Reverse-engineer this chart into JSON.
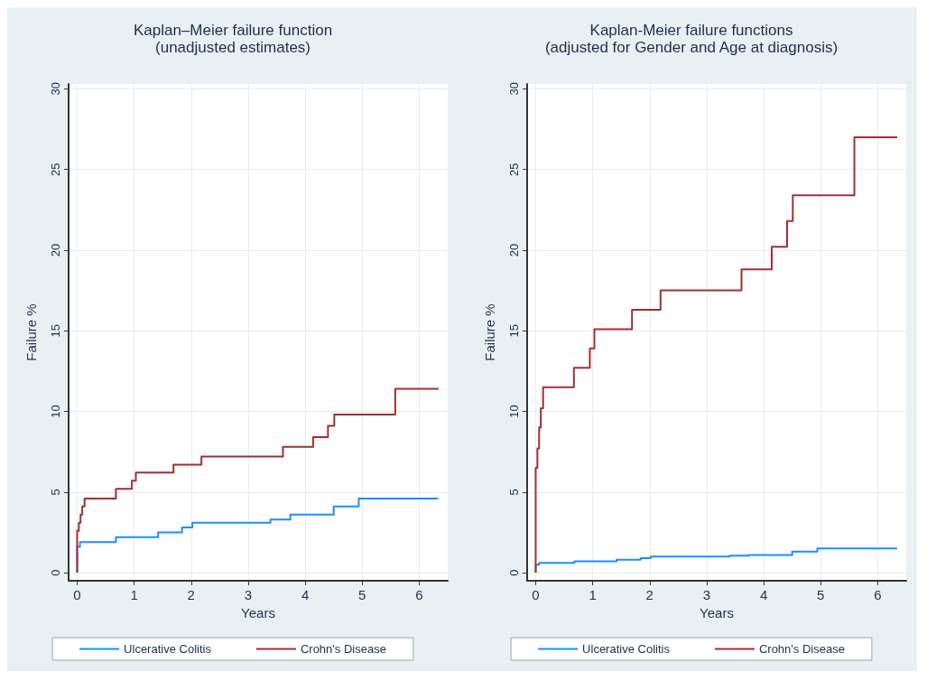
{
  "chart_data": [
    {
      "type": "step",
      "title": "Kaplan–Meier failure function",
      "subtitle": "(unadjusted estimates)",
      "xlabel": "Years",
      "ylabel": "Failure %",
      "xlim": [
        -0.15,
        6.5
      ],
      "xticks": [
        0,
        1,
        2,
        3,
        4,
        5,
        6
      ],
      "ylim": [
        -0.5,
        30.3
      ],
      "yticks": [
        0,
        5,
        10,
        15,
        20,
        25,
        30
      ],
      "grid": true,
      "legend": "bottom",
      "series": [
        {
          "name": "Ulcerative Colitis",
          "color": "#1e8cff",
          "x": [
            0,
            0,
            0.05,
            0.68,
            1.42,
            1.84,
            2.02,
            3.39,
            3.74,
            4.5,
            4.94,
            6.33
          ],
          "values": [
            0,
            1.6,
            1.9,
            2.2,
            2.5,
            2.8,
            3.1,
            3.3,
            3.6,
            4.1,
            4.6,
            4.6
          ]
        },
        {
          "name": "Crohn's Disease",
          "color": "#a0302f",
          "x": [
            0,
            0,
            0.03,
            0.06,
            0.09,
            0.13,
            0.68,
            0.96,
            1.03,
            1.69,
            2.18,
            3.61,
            4.14,
            4.4,
            4.51,
            5.58,
            6.34
          ],
          "values": [
            0,
            2.6,
            3.1,
            3.6,
            4.1,
            4.6,
            5.2,
            5.7,
            6.2,
            6.7,
            7.2,
            7.8,
            8.4,
            9.1,
            9.8,
            11.4,
            11.4
          ]
        }
      ]
    },
    {
      "type": "step",
      "title": "Kaplan-Meier failure functions",
      "subtitle": "(adjusted for Gender and Age at diagnosis)",
      "xlabel": "Years",
      "ylabel": "Failure %",
      "xlim": [
        -0.15,
        6.5
      ],
      "xticks": [
        0,
        1,
        2,
        3,
        4,
        5,
        6
      ],
      "ylim": [
        -0.5,
        30.3
      ],
      "yticks": [
        0,
        5,
        10,
        15,
        20,
        25,
        30
      ],
      "grid": true,
      "legend": "bottom",
      "series": [
        {
          "name": "Ulcerative Colitis",
          "color": "#1e8cff",
          "x": [
            0,
            0,
            0.06,
            0.68,
            1.42,
            1.84,
            2.02,
            3.4,
            3.74,
            4.5,
            4.94,
            6.34
          ],
          "values": [
            0,
            0.5,
            0.6,
            0.7,
            0.8,
            0.9,
            1.0,
            1.05,
            1.1,
            1.3,
            1.5,
            1.5
          ]
        },
        {
          "name": "Crohn's Disease",
          "color": "#a0302f",
          "x": [
            0,
            0,
            0.03,
            0.06,
            0.09,
            0.13,
            0.67,
            0.95,
            1.03,
            1.69,
            2.19,
            3.61,
            4.14,
            4.41,
            4.51,
            5.59,
            6.34
          ],
          "values": [
            0,
            6.5,
            7.7,
            9.0,
            10.2,
            11.5,
            12.7,
            13.9,
            15.1,
            16.3,
            17.5,
            18.8,
            20.2,
            21.8,
            23.4,
            27.0,
            27.0
          ]
        }
      ]
    }
  ]
}
